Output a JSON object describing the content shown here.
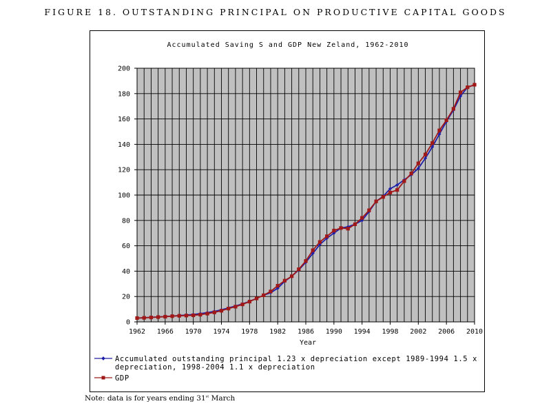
{
  "figure": {
    "title": "FIGURE 18. OUTSTANDING PRINCIPAL ON PRODUCTIVE CAPITAL GOODS",
    "note_prefix": "Note: data is for years ending 31",
    "note_sup": "st",
    "note_suffix": " March"
  },
  "chart_data": {
    "type": "line",
    "title": "Accumulated Saving S and GDP New Zeland, 1962-2010",
    "xlabel": "Year",
    "ylabel": "",
    "xlim": [
      1962,
      2010
    ],
    "ylim": [
      0,
      200
    ],
    "xticks": [
      1962,
      1966,
      1970,
      1974,
      1978,
      1982,
      1986,
      1990,
      1994,
      1998,
      2002,
      2006,
      2010
    ],
    "yticks": [
      0,
      20,
      40,
      60,
      80,
      100,
      120,
      140,
      160,
      180,
      200
    ],
    "grid": true,
    "plot_background": "#c0c0c0",
    "legend_position": "bottom",
    "x": [
      1962,
      1963,
      1964,
      1965,
      1966,
      1967,
      1968,
      1969,
      1970,
      1971,
      1972,
      1973,
      1974,
      1975,
      1976,
      1977,
      1978,
      1979,
      1980,
      1981,
      1982,
      1983,
      1984,
      1985,
      1986,
      1987,
      1988,
      1989,
      1990,
      1991,
      1992,
      1993,
      1994,
      1995,
      1996,
      1997,
      1998,
      1999,
      2000,
      2001,
      2002,
      2003,
      2004,
      2005,
      2006,
      2007,
      2008,
      2009,
      2010
    ],
    "series": [
      {
        "name": "Accumulated outstanding principal 1.23 x depreciation except 1989-1994 1.5 x depreciation, 1998-2004 1.1 x depreciation",
        "legend_line1": "Accumulated outstanding principal 1.23 x depreciation except 1989-1994 1.5 x",
        "legend_line2": "depreciation, 1998-2004 1.1 x depreciation",
        "color": "#1f1fa8",
        "marker": "diamond",
        "values": [
          3,
          3.3,
          3.6,
          3.9,
          4.2,
          4.6,
          5,
          5.4,
          5.8,
          6.5,
          7.3,
          8.3,
          9.5,
          11,
          12.5,
          14.2,
          16.2,
          18.5,
          21,
          23,
          26.5,
          32,
          36,
          41,
          47,
          54,
          61,
          66,
          70,
          74,
          75,
          77,
          80,
          87,
          95,
          99,
          105,
          108,
          112,
          116,
          121,
          129,
          138,
          148,
          158,
          167,
          178,
          185,
          187
        ],
        "visible_in_front": false
      },
      {
        "name": "GDP",
        "legend_line1": "GDP",
        "color": "#a01818",
        "marker": "square",
        "values": [
          3,
          3.2,
          3.5,
          3.8,
          4.1,
          4.5,
          4.8,
          5,
          5.2,
          5.7,
          6.5,
          7.5,
          8.8,
          10.5,
          12,
          13.8,
          16,
          18.5,
          21,
          24,
          28.5,
          32.5,
          36,
          41.5,
          48,
          56.5,
          63,
          67.5,
          72,
          74,
          73.5,
          77,
          82,
          88,
          95,
          98.5,
          102,
          104,
          111,
          117,
          125,
          132,
          141,
          151,
          159,
          168,
          181,
          185,
          187
        ],
        "visible_in_front": true
      }
    ]
  }
}
